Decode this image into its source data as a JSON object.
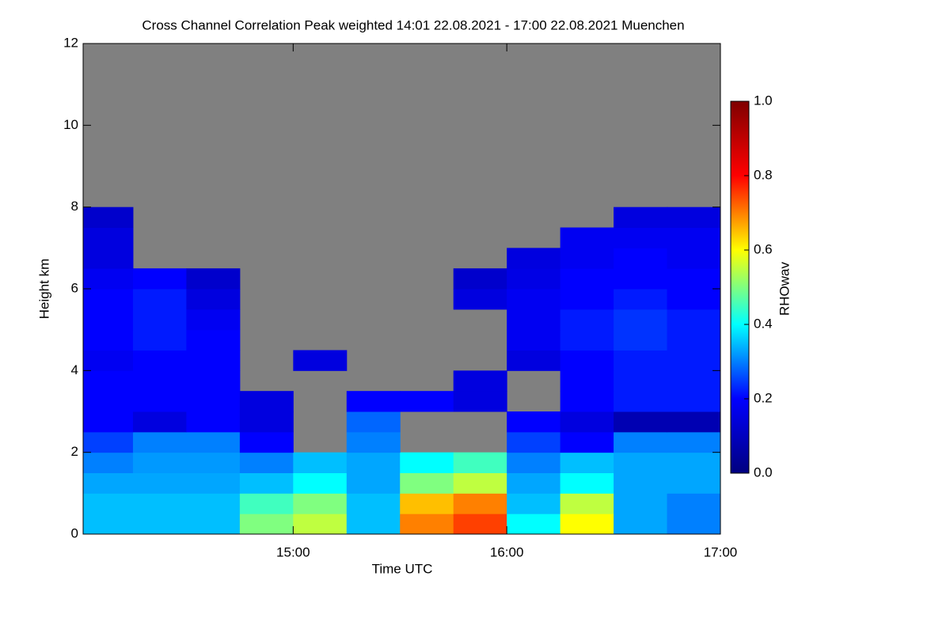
{
  "chart_data": {
    "type": "heatmap",
    "title": "Cross Channel Correlation Peak weighted   14:01 22.08.2021 - 17:00 22.08.2021 Muenchen",
    "xlabel": "Time UTC",
    "ylabel": "Height km",
    "colorbar_label": "RHOwav",
    "x": [
      14.125,
      14.375,
      14.625,
      14.875,
      15.125,
      15.375,
      15.625,
      15.875,
      16.125,
      16.375,
      16.625,
      16.875
    ],
    "y": [
      0.25,
      0.75,
      1.25,
      1.75,
      2.25,
      2.75,
      3.25,
      3.75,
      4.25,
      4.75,
      5.25,
      5.75,
      6.25,
      6.75,
      7.25,
      7.75
    ],
    "z": [
      [
        0.35,
        0.35,
        0.35,
        0.5,
        0.55,
        0.35,
        0.7,
        0.75,
        0.4,
        0.6,
        0.33,
        0.3
      ],
      [
        0.35,
        0.35,
        0.35,
        0.45,
        0.5,
        0.35,
        0.65,
        0.7,
        0.35,
        0.55,
        0.33,
        0.3
      ],
      [
        0.33,
        0.33,
        0.33,
        0.35,
        0.4,
        0.33,
        0.5,
        0.55,
        0.33,
        0.4,
        0.33,
        0.33
      ],
      [
        0.3,
        0.32,
        0.32,
        0.3,
        0.35,
        0.33,
        0.4,
        0.45,
        0.3,
        0.35,
        0.33,
        0.33
      ],
      [
        0.25,
        0.3,
        0.3,
        0.2,
        null,
        0.3,
        null,
        null,
        0.25,
        0.2,
        0.3,
        0.3
      ],
      [
        0.2,
        0.15,
        0.2,
        0.15,
        null,
        0.28,
        null,
        null,
        0.2,
        0.15,
        0.08,
        0.08
      ],
      [
        0.2,
        0.2,
        0.2,
        0.15,
        null,
        0.2,
        0.2,
        0.15,
        null,
        0.2,
        0.22,
        0.22
      ],
      [
        0.2,
        0.2,
        0.2,
        null,
        null,
        null,
        null,
        0.15,
        null,
        0.2,
        0.22,
        0.22
      ],
      [
        0.18,
        0.2,
        0.2,
        null,
        0.15,
        null,
        null,
        null,
        0.15,
        0.2,
        0.22,
        0.22
      ],
      [
        0.2,
        0.22,
        0.2,
        null,
        null,
        null,
        null,
        null,
        0.18,
        0.22,
        0.24,
        0.22
      ],
      [
        0.2,
        0.22,
        0.18,
        null,
        null,
        null,
        null,
        null,
        0.18,
        0.22,
        0.24,
        0.22
      ],
      [
        0.2,
        0.22,
        0.15,
        null,
        null,
        null,
        null,
        0.15,
        0.18,
        0.2,
        0.22,
        0.2
      ],
      [
        0.18,
        0.2,
        0.12,
        null,
        null,
        null,
        null,
        0.12,
        0.16,
        0.2,
        0.2,
        0.2
      ],
      [
        0.15,
        null,
        null,
        null,
        null,
        null,
        null,
        null,
        0.15,
        0.18,
        0.2,
        0.18
      ],
      [
        0.15,
        null,
        null,
        null,
        null,
        null,
        null,
        null,
        null,
        0.18,
        0.18,
        0.18
      ],
      [
        0.12,
        null,
        null,
        null,
        null,
        null,
        null,
        null,
        null,
        null,
        0.15,
        0.15
      ]
    ],
    "xlim": [
      14.0167,
      17.0
    ],
    "xticks": [
      {
        "value": 15,
        "label": "15:00"
      },
      {
        "value": 16,
        "label": "16:00"
      },
      {
        "value": 17,
        "label": "17:00"
      }
    ],
    "ylim": [
      0,
      12
    ],
    "yticks": [
      0,
      2,
      4,
      6,
      8,
      10,
      12
    ],
    "zlim": [
      0,
      1
    ],
    "zticks": [
      {
        "value": 0,
        "label": "0.0"
      },
      {
        "value": 0.2,
        "label": "0.2"
      },
      {
        "value": 0.4,
        "label": "0.4"
      },
      {
        "value": 0.6,
        "label": "0.6"
      },
      {
        "value": 0.8,
        "label": "0.8"
      },
      {
        "value": 1,
        "label": "1.0"
      }
    ],
    "colorscale": [
      "#00007f",
      "#0000ff",
      "#00ffff",
      "#ffff00",
      "#ff0000",
      "#7f0000"
    ],
    "nan_color": "#808080"
  }
}
